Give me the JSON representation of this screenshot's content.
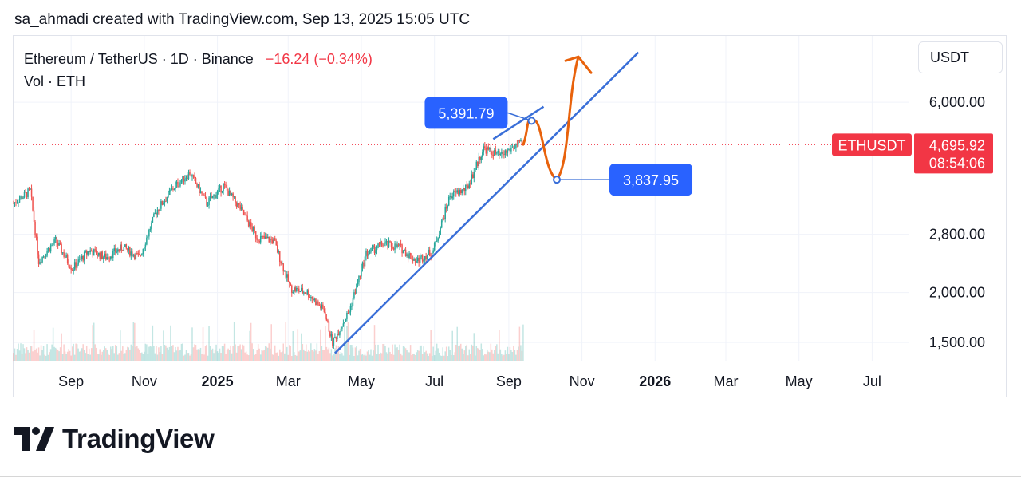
{
  "header": {
    "attribution": "sa_ahmadi created with TradingView.com, Sep 13, 2025 15:05 UTC"
  },
  "legend": {
    "symbol_line": "Ethereum / TetherUS · 1D · Binance",
    "change": "−16.24 (−0.34%)",
    "volume_line": "Vol · ETH"
  },
  "currency_selector": {
    "label": "USDT"
  },
  "brand": {
    "name": "TradingView"
  },
  "colors": {
    "up": "#26a69a",
    "down": "#ef5350",
    "trendline": "#3a6fd8",
    "projection": "#e8620c",
    "price_tag": "#f23645",
    "callout": "#2962ff"
  },
  "chart_data": {
    "type": "candlestick",
    "symbol": "ETHUSDT",
    "interval": "1D",
    "y_scale": "log",
    "y_ticks": [
      "6,000.00",
      "2,800.00",
      "2,000.00",
      "1,500.00"
    ],
    "y_tick_values": [
      6000,
      2800,
      2000,
      1500
    ],
    "ylim": [
      1350,
      8800
    ],
    "x_ticks": [
      {
        "label": "Sep",
        "date": "2024-09-01",
        "bold": false
      },
      {
        "label": "Nov",
        "date": "2024-11-01",
        "bold": false
      },
      {
        "label": "2025",
        "date": "2025-01-01",
        "bold": true
      },
      {
        "label": "Mar",
        "date": "2025-03-01",
        "bold": false
      },
      {
        "label": "May",
        "date": "2025-05-01",
        "bold": false
      },
      {
        "label": "Jul",
        "date": "2025-07-01",
        "bold": false
      },
      {
        "label": "Sep",
        "date": "2025-09-01",
        "bold": false
      },
      {
        "label": "Nov",
        "date": "2025-11-01",
        "bold": false
      },
      {
        "label": "2026",
        "date": "2026-01-01",
        "bold": true
      },
      {
        "label": "Mar",
        "date": "2026-03-01",
        "bold": false
      },
      {
        "label": "May",
        "date": "2026-05-01",
        "bold": false
      },
      {
        "label": "Jul",
        "date": "2026-07-01",
        "bold": false
      }
    ],
    "xlim": [
      "2024-07-15",
      "2026-08-01"
    ],
    "weekly_closes": [
      {
        "date": "2024-07-15",
        "close": 3350
      },
      {
        "date": "2024-07-29",
        "close": 3600
      },
      {
        "date": "2024-08-05",
        "close": 2400
      },
      {
        "date": "2024-08-19",
        "close": 2700
      },
      {
        "date": "2024-09-02",
        "close": 2300
      },
      {
        "date": "2024-09-16",
        "close": 2550
      },
      {
        "date": "2024-09-30",
        "close": 2450
      },
      {
        "date": "2024-10-14",
        "close": 2600
      },
      {
        "date": "2024-10-28",
        "close": 2450
      },
      {
        "date": "2024-11-11",
        "close": 3200
      },
      {
        "date": "2024-11-25",
        "close": 3650
      },
      {
        "date": "2024-12-09",
        "close": 4000
      },
      {
        "date": "2024-12-23",
        "close": 3350
      },
      {
        "date": "2025-01-06",
        "close": 3700
      },
      {
        "date": "2025-01-20",
        "close": 3250
      },
      {
        "date": "2025-02-03",
        "close": 2750
      },
      {
        "date": "2025-02-17",
        "close": 2700
      },
      {
        "date": "2025-03-03",
        "close": 2050
      },
      {
        "date": "2025-03-17",
        "close": 2000
      },
      {
        "date": "2025-03-31",
        "close": 1800
      },
      {
        "date": "2025-04-07",
        "close": 1500
      },
      {
        "date": "2025-04-21",
        "close": 1800
      },
      {
        "date": "2025-05-05",
        "close": 2500
      },
      {
        "date": "2025-05-19",
        "close": 2650
      },
      {
        "date": "2025-06-02",
        "close": 2600
      },
      {
        "date": "2025-06-16",
        "close": 2400
      },
      {
        "date": "2025-06-30",
        "close": 2550
      },
      {
        "date": "2025-07-14",
        "close": 3500
      },
      {
        "date": "2025-07-28",
        "close": 3650
      },
      {
        "date": "2025-08-11",
        "close": 4600
      },
      {
        "date": "2025-08-25",
        "close": 4400
      },
      {
        "date": "2025-09-08",
        "close": 4700
      }
    ],
    "last_price": {
      "label": "ETHUSDT",
      "price": "4,695.92",
      "countdown": "08:54:06",
      "value": 4695.92
    },
    "trendlines": [
      {
        "from": {
          "date": "2025-04-09",
          "price": 1410
        },
        "to": {
          "date": "2025-12-18",
          "price": 8000
        }
      },
      {
        "from": {
          "date": "2025-08-19",
          "price": 4850
        },
        "to": {
          "date": "2025-09-30",
          "price": 5850
        }
      }
    ],
    "projection": [
      {
        "date": "2025-09-13",
        "price": 4700
      },
      {
        "date": "2025-09-20",
        "price": 5392
      },
      {
        "date": "2025-10-11",
        "price": 3838
      },
      {
        "date": "2025-10-29",
        "price": 7800
      }
    ],
    "callouts": [
      {
        "label": "5,391.79",
        "date": "2025-09-20",
        "price": 5391.79
      },
      {
        "label": "3,837.95",
        "date": "2025-10-11",
        "price": 3837.95
      }
    ]
  }
}
